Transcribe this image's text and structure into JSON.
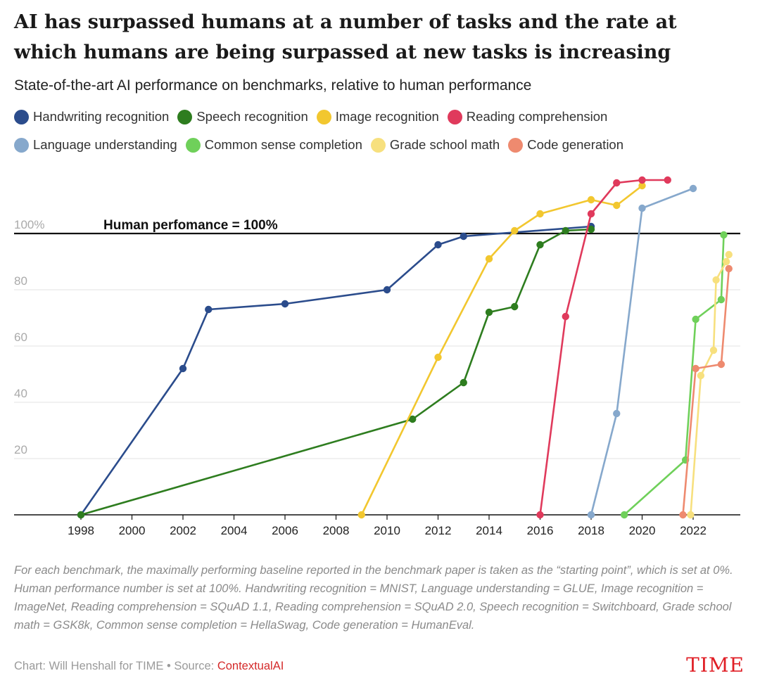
{
  "title": "AI has surpassed humans at a number of tasks and the rate at which humans are being surpassed at new tasks is increasing",
  "subtitle": "State-of-the-art AI performance on benchmarks, relative to human performance",
  "colors": {
    "grid": "#e3e3e3",
    "axis": "#111111",
    "tick_label": "#aaaaaa",
    "x_tick_label": "#222222",
    "brand": "#e01f26",
    "source_link": "#d42a2a"
  },
  "chart_data": {
    "type": "line",
    "title": "AI has surpassed humans at a number of tasks and the rate at which humans are being surpassed at new tasks is increasing",
    "subtitle": "State-of-the-art AI performance on benchmarks, relative to human performance",
    "xlabel": "",
    "ylabel": "",
    "x_ticks": [
      "1998",
      "2000",
      "2002",
      "2004",
      "2006",
      "2008",
      "2010",
      "2012",
      "2014",
      "2016",
      "2018",
      "2020",
      "2022"
    ],
    "y_ticks": [
      "20",
      "40",
      "60",
      "80",
      "100%"
    ],
    "xlim": [
      1998,
      2023.5
    ],
    "ylim": [
      0,
      120
    ],
    "grid": true,
    "legend_position": "top",
    "reference_line": {
      "y": 100,
      "label": "Human perfomance = 100%"
    },
    "series": [
      {
        "name": "Handwriting recognition",
        "color": "#2b4c8c",
        "x": [
          1998,
          2002,
          2003,
          2006,
          2010,
          2012,
          2013,
          2018
        ],
        "y": [
          0,
          52,
          73,
          75,
          80,
          96,
          99,
          102.5
        ]
      },
      {
        "name": "Speech recognition",
        "color": "#2e7d1f",
        "x": [
          1998,
          2011,
          2013,
          2014,
          2015,
          2016,
          2017,
          2018
        ],
        "y": [
          0,
          34,
          47,
          72,
          74,
          96,
          101,
          101.5
        ]
      },
      {
        "name": "Image recognition",
        "color": "#f2c72f",
        "x": [
          2009,
          2012,
          2014,
          2015,
          2016,
          2018,
          2019,
          2020
        ],
        "y": [
          0,
          56,
          91,
          101,
          107,
          112,
          110,
          117
        ]
      },
      {
        "name": "Reading comprehension",
        "color": "#e03a5c",
        "x": [
          2016,
          2017,
          2018,
          2019,
          2020,
          2021
        ],
        "y": [
          0,
          70.5,
          107,
          118,
          119,
          119
        ]
      },
      {
        "name": "Language understanding",
        "color": "#86a8cc",
        "x": [
          2018,
          2019,
          2020,
          2022
        ],
        "y": [
          0,
          36,
          109,
          116
        ]
      },
      {
        "name": "Common sense completion",
        "color": "#6fd05a",
        "x": [
          2019.3,
          2021.7,
          2022.1,
          2023.1,
          2023.2
        ],
        "y": [
          0,
          19.5,
          69.5,
          76.5,
          99.5
        ]
      },
      {
        "name": "Grade school math",
        "color": "#f7e07e",
        "x": [
          2021.9,
          2022.3,
          2022.8,
          2022.9,
          2023.3,
          2023.4
        ],
        "y": [
          0,
          49.5,
          58.5,
          83.5,
          90,
          92.5
        ]
      },
      {
        "name": "Code generation",
        "color": "#ee8a6f",
        "x": [
          2021.6,
          2022.1,
          2023.1,
          2023.4
        ],
        "y": [
          0,
          52,
          53.5,
          87.5
        ]
      }
    ]
  },
  "footnote": "For each benchmark, the maximally performing baseline reported in the benchmark paper is taken as the “starting point”, which is set at 0%. Human performance number is set at 100%. Handwriting recognition = MNIST, Language understanding = GLUE, Image recognition = ImageNet, Reading comprehension = SQuAD 1.1, Reading comprehension = SQuAD 2.0, Speech recognition = Switchboard, Grade school math = GSK8k, Common sense completion = HellaSwag, Code generation = HumanEval.",
  "source": {
    "prefix": "Chart: Will Henshall for TIME • Source: ",
    "link_text": "ContextualAI"
  },
  "brand": "TIME"
}
